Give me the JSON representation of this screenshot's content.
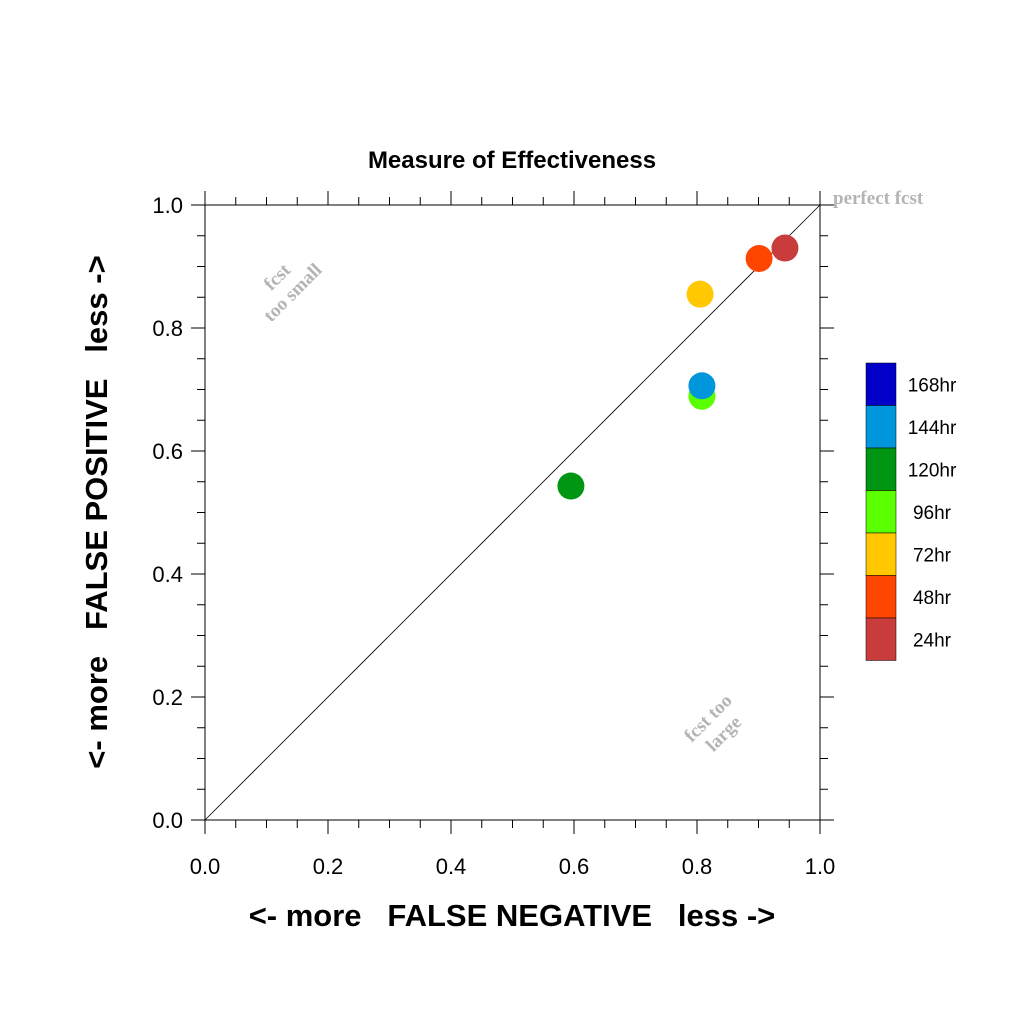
{
  "chart_data": {
    "type": "scatter",
    "title": "Measure of Effectiveness",
    "xlabel": "<- more   FALSE NEGATIVE   less ->",
    "ylabel": "<- more   FALSE POSITIVE   less ->",
    "xlim": [
      0.0,
      1.0
    ],
    "ylim": [
      0.0,
      1.0
    ],
    "x_ticks": [
      "0.0",
      "0.2",
      "0.4",
      "0.6",
      "0.8",
      "1.0"
    ],
    "y_ticks": [
      "0.0",
      "0.2",
      "0.4",
      "0.6",
      "0.8",
      "1.0"
    ],
    "grid": false,
    "diagonal_line": true,
    "legend_position": "right",
    "annotations": {
      "perfect": "perfect fcst",
      "too_small_line1": "fcst",
      "too_small_line2": "too small",
      "too_large_line1": "fcst too",
      "too_large_line2": "large"
    },
    "series": [
      {
        "name": "168hr",
        "color": "#0000c8",
        "points": []
      },
      {
        "name": "144hr",
        "color": "#0096dc",
        "points": [
          [
            0.808,
            0.706
          ]
        ]
      },
      {
        "name": "120hr",
        "color": "#009614",
        "points": [
          [
            0.595,
            0.543
          ]
        ]
      },
      {
        "name": "96hr",
        "color": "#5aff00",
        "points": [
          [
            0.808,
            0.689
          ]
        ]
      },
      {
        "name": "72hr",
        "color": "#ffc800",
        "points": [
          [
            0.805,
            0.855
          ]
        ]
      },
      {
        "name": "48hr",
        "color": "#ff4600",
        "points": [
          [
            0.901,
            0.913
          ]
        ]
      },
      {
        "name": "24hr",
        "color": "#c83c3c",
        "points": [
          [
            0.943,
            0.93
          ]
        ]
      }
    ]
  }
}
